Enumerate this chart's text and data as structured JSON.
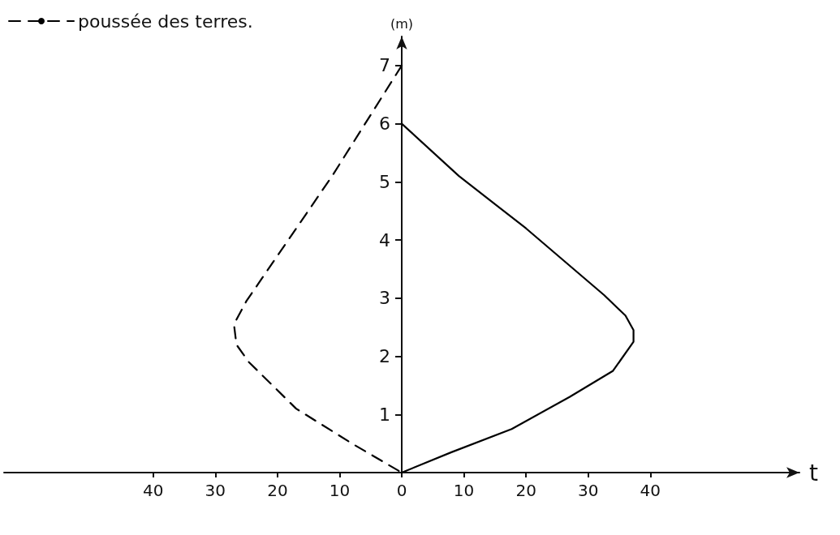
{
  "chart_data": {
    "type": "line",
    "xlabel": "t",
    "ylabel": "(m)",
    "xlim": [
      -64,
      64
    ],
    "xticks": [
      {
        "value": -40,
        "label": "40"
      },
      {
        "value": -30,
        "label": "30"
      },
      {
        "value": -20,
        "label": "20"
      },
      {
        "value": -10,
        "label": "10"
      },
      0,
      10,
      20,
      30,
      40
    ],
    "ylim": [
      0,
      7.5
    ],
    "yticks": [
      1,
      2,
      3,
      4,
      5,
      6,
      7
    ],
    "series": [
      {
        "color": "#000000",
        "line_style": "solid",
        "x": [
          0,
          9.2,
          20,
          32.6,
          36,
          37.3,
          37.3,
          34,
          27,
          17.7,
          8,
          0
        ],
        "values": [
          6,
          5.1,
          4.2,
          3.05,
          2.7,
          2.45,
          2.25,
          1.75,
          1.3,
          0.75,
          0.35,
          0
        ]
      },
      {
        "name": "poussée des terres.",
        "color": "#000000",
        "line_style": "dashed",
        "x": [
          0,
          -11.2,
          -25,
          -27,
          -26.6,
          -24.6,
          -17,
          -8,
          0
        ],
        "values": [
          7,
          5.1,
          2.95,
          2.55,
          2.2,
          1.9,
          1.1,
          0.5,
          0
        ]
      }
    ],
    "legend": "top left",
    "grid": false,
    "marker": "none"
  }
}
